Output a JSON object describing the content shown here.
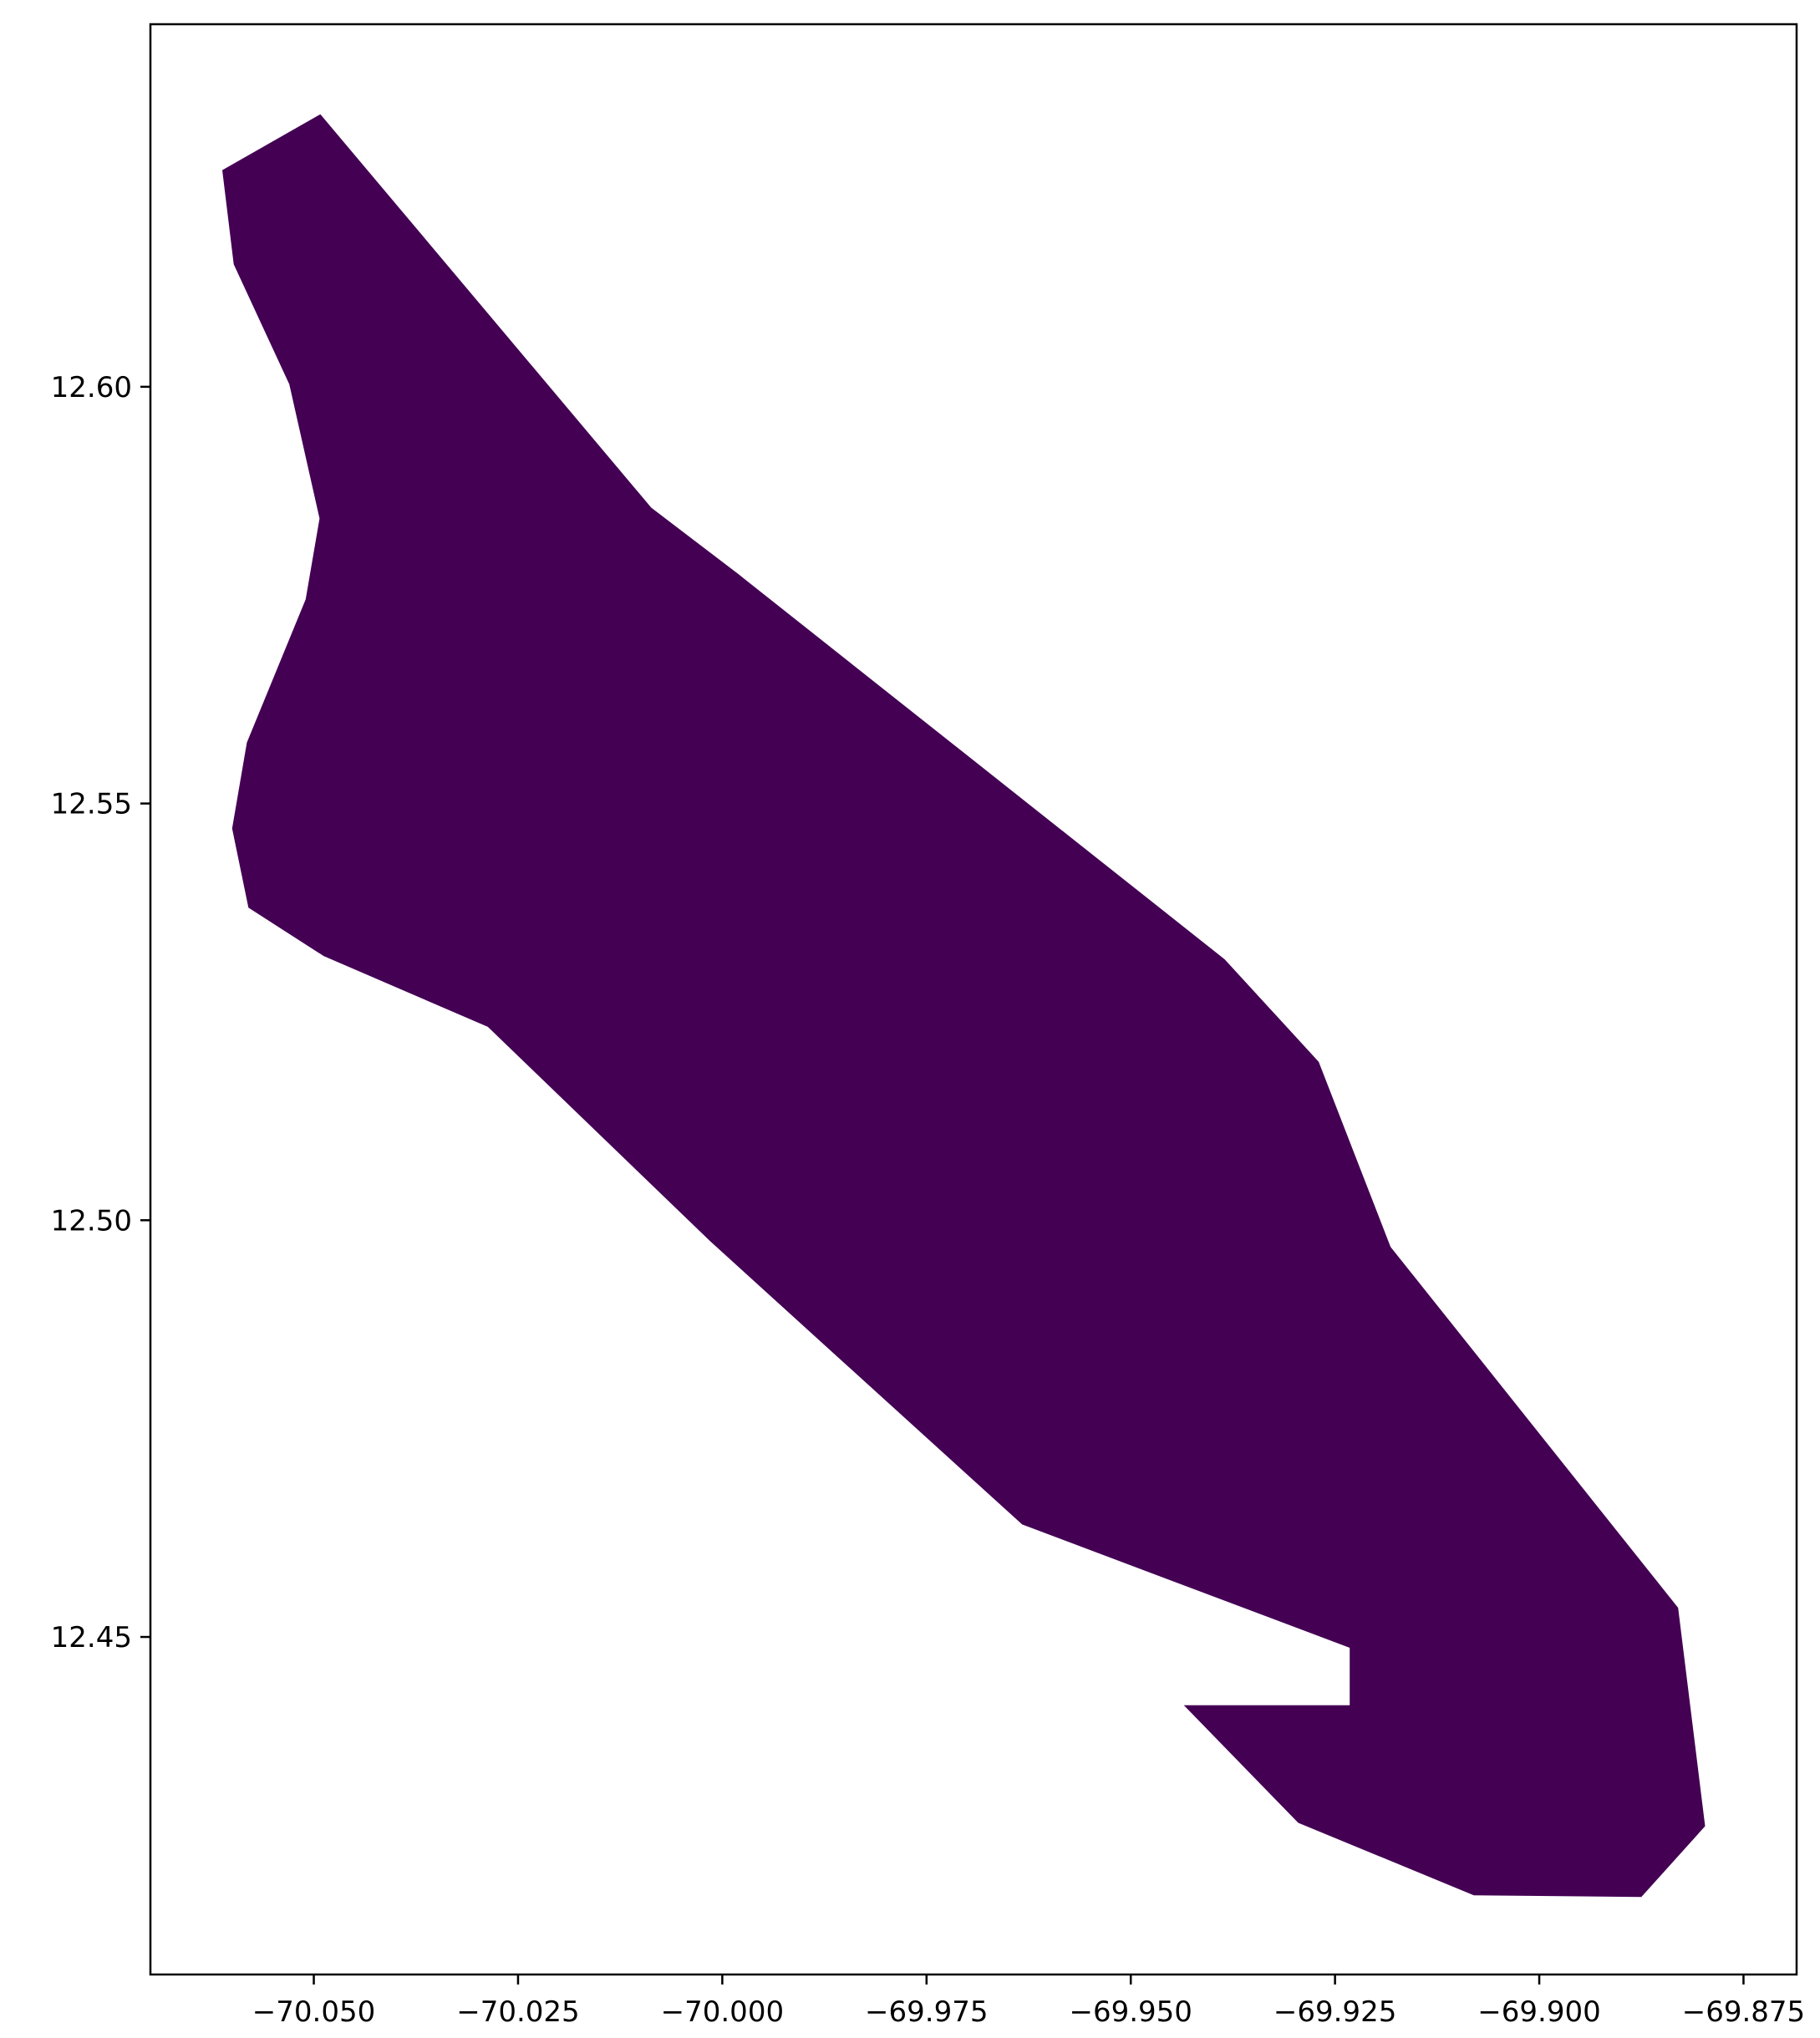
{
  "map": {
    "type": "choropleth-polygon",
    "fill_color": "#440154",
    "axes": {
      "frame_color": "#000000",
      "xlim": [
        -70.07,
        -69.8685
      ],
      "ylim": [
        12.4095,
        12.6435
      ],
      "x_ticks": [
        -70.05,
        -70.025,
        -70.0,
        -69.975,
        -69.95,
        -69.925,
        -69.9,
        -69.875
      ],
      "y_ticks": [
        12.45,
        12.5,
        12.55,
        12.6
      ],
      "x_tick_labels": [
        "−70.050",
        "−70.025",
        "−70.000",
        "−69.975",
        "−69.950",
        "−69.925",
        "−69.900",
        "−69.875"
      ],
      "y_tick_labels": [
        "12.45",
        "12.50",
        "12.55",
        "12.60"
      ]
    },
    "polygon": [
      [
        -70.0492,
        12.6327
      ],
      [
        -70.0087,
        12.5855
      ],
      [
        -69.998,
        12.5775
      ],
      [
        -69.9385,
        12.5313
      ],
      [
        -69.927,
        12.519
      ],
      [
        -69.9182,
        12.4968
      ],
      [
        -69.883,
        12.4535
      ],
      [
        -69.8797,
        12.4273
      ],
      [
        -69.8875,
        12.4188
      ],
      [
        -69.908,
        12.419
      ],
      [
        -69.9295,
        12.4277
      ],
      [
        -69.9435,
        12.4418
      ],
      [
        -69.9232,
        12.4418
      ],
      [
        -69.9232,
        12.4487
      ],
      [
        -69.9633,
        12.4635
      ],
      [
        -70.0015,
        12.4975
      ],
      [
        -70.0287,
        12.5232
      ],
      [
        -70.0488,
        12.5317
      ],
      [
        -70.058,
        12.5375
      ],
      [
        -70.06,
        12.547
      ],
      [
        -70.0582,
        12.5573
      ],
      [
        -70.051,
        12.5745
      ],
      [
        -70.0493,
        12.5842
      ],
      [
        -70.053,
        12.6003
      ],
      [
        -70.0598,
        12.6147
      ],
      [
        -70.0612,
        12.626
      ]
    ]
  }
}
